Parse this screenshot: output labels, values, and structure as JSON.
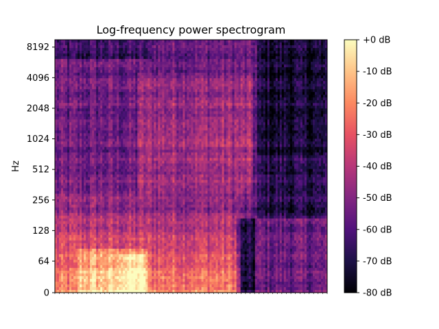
{
  "chart_data": {
    "type": "heatmap",
    "title": "Log-frequency power spectrogram",
    "xlabel": "",
    "ylabel": "Hz",
    "yscale": "log2",
    "y_ticks": [
      "0",
      "64",
      "128",
      "256",
      "512",
      "1024",
      "2048",
      "4096",
      "8192"
    ],
    "y_tick_values": [
      0,
      64,
      128,
      256,
      512,
      1024,
      2048,
      4096,
      8192
    ],
    "x_ticks_labeled": false,
    "colormap": "magma",
    "colormap_stops": [
      "#000004",
      "#1d1147",
      "#51127c",
      "#822681",
      "#b73779",
      "#e75263",
      "#fc8961",
      "#fec488",
      "#fcfdbf"
    ],
    "colorbar": {
      "range": [
        -80,
        0
      ],
      "unit": "dB",
      "ticks": [
        "+0 dB",
        "-10 dB",
        "-20 dB",
        "-30 dB",
        "-40 dB",
        "-50 dB",
        "-60 dB",
        "-70 dB",
        "-80 dB"
      ],
      "tick_values": [
        0,
        -10,
        -20,
        -30,
        -40,
        -50,
        -60,
        -70,
        -80
      ]
    },
    "grid": false,
    "legend": "none"
  }
}
